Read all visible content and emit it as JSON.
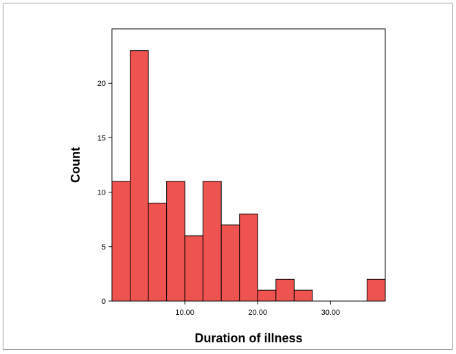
{
  "chart_data": {
    "type": "bar",
    "title": "",
    "xlabel": "Duration of illness",
    "ylabel": "Count",
    "bin_width": 2.5,
    "bins_start": [
      0,
      2.5,
      5,
      7.5,
      10,
      12.5,
      15,
      17.5,
      20,
      22.5,
      25,
      27.5,
      30,
      32.5,
      35
    ],
    "values": [
      11,
      23,
      9,
      11,
      6,
      11,
      7,
      8,
      1,
      2,
      1,
      0,
      0,
      0,
      2
    ],
    "xlim": [
      0,
      37.5
    ],
    "ylim": [
      0,
      25
    ],
    "x_ticks": [
      10,
      20,
      30
    ],
    "x_tick_labels": [
      "10.00",
      "20.00",
      "30.00"
    ],
    "y_ticks": [
      0,
      5,
      10,
      15,
      20
    ],
    "y_tick_labels": [
      "0",
      "5",
      "10",
      "15",
      "20"
    ],
    "bar_color": "#ef5350",
    "grid": false
  }
}
